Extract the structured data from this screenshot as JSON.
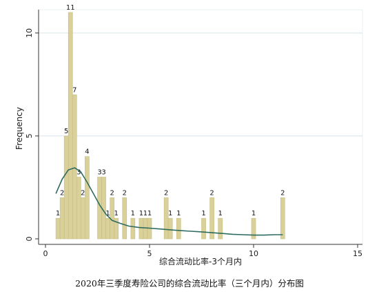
{
  "caption": "2020年三季度寿险公司的综合流动比率（三个月内）分布图",
  "chart_data": {
    "type": "bar",
    "xlabel": "综合流动比率-3个月内",
    "ylabel": "Frequency",
    "xlim": [
      0,
      15
    ],
    "ylim": [
      0,
      11
    ],
    "xticks": [
      0,
      5,
      10,
      15
    ],
    "yticks": [
      0,
      5,
      10
    ],
    "grid": "horizontal",
    "colors": {
      "bar": "#d9d09a",
      "bar_edge": "#c7bd80",
      "line": "#2e6b5e",
      "grid": "#d8e4ea",
      "frame_bg": "#eaf2f3"
    },
    "bars": [
      {
        "x_start": 0.5,
        "x_end": 0.7,
        "count": 1,
        "label": "1"
      },
      {
        "x_start": 0.7,
        "x_end": 0.9,
        "count": 2,
        "label": "2"
      },
      {
        "x_start": 0.9,
        "x_end": 1.1,
        "count": 5,
        "label": "5"
      },
      {
        "x_start": 1.1,
        "x_end": 1.3,
        "count": 11,
        "label": "11"
      },
      {
        "x_start": 1.3,
        "x_end": 1.5,
        "count": 7,
        "label": "7"
      },
      {
        "x_start": 1.5,
        "x_end": 1.7,
        "count": 3,
        "label": "3"
      },
      {
        "x_start": 1.7,
        "x_end": 1.9,
        "count": 2,
        "label": "2"
      },
      {
        "x_start": 1.9,
        "x_end": 2.1,
        "count": 4,
        "label": "4"
      },
      {
        "x_start": 2.1,
        "x_end": 2.5,
        "count": 0,
        "label": ""
      },
      {
        "x_start": 2.5,
        "x_end": 2.7,
        "count": 3,
        "label": "3"
      },
      {
        "x_start": 2.7,
        "x_end": 2.9,
        "count": 3,
        "label": "3"
      },
      {
        "x_start": 2.9,
        "x_end": 3.1,
        "count": 1,
        "label": "1"
      },
      {
        "x_start": 3.1,
        "x_end": 3.3,
        "count": 2,
        "label": "2"
      },
      {
        "x_start": 3.3,
        "x_end": 3.5,
        "count": 1,
        "label": "1"
      },
      {
        "x_start": 3.7,
        "x_end": 3.9,
        "count": 2,
        "label": "2"
      },
      {
        "x_start": 4.1,
        "x_end": 4.3,
        "count": 1,
        "label": "1"
      },
      {
        "x_start": 4.5,
        "x_end": 4.7,
        "count": 1,
        "label": "1"
      },
      {
        "x_start": 4.7,
        "x_end": 4.9,
        "count": 1,
        "label": "1"
      },
      {
        "x_start": 4.9,
        "x_end": 5.1,
        "count": 1,
        "label": "1"
      },
      {
        "x_start": 5.7,
        "x_end": 5.9,
        "count": 2,
        "label": "2"
      },
      {
        "x_start": 5.9,
        "x_end": 6.1,
        "count": 1,
        "label": "1"
      },
      {
        "x_start": 6.3,
        "x_end": 6.5,
        "count": 1,
        "label": "1"
      },
      {
        "x_start": 7.5,
        "x_end": 7.7,
        "count": 1,
        "label": "1"
      },
      {
        "x_start": 7.9,
        "x_end": 8.1,
        "count": 2,
        "label": "2"
      },
      {
        "x_start": 8.3,
        "x_end": 8.5,
        "count": 1,
        "label": "1"
      },
      {
        "x_start": 9.9,
        "x_end": 10.1,
        "count": 1,
        "label": "1"
      },
      {
        "x_start": 11.3,
        "x_end": 11.5,
        "count": 2,
        "label": "2"
      }
    ],
    "density_curve": {
      "x": [
        0.5,
        0.8,
        1.1,
        1.4,
        1.7,
        2.0,
        2.3,
        2.6,
        2.9,
        3.2,
        3.6,
        4.0,
        4.5,
        5.0,
        5.5,
        6.0,
        6.5,
        7.0,
        7.5,
        8.0,
        8.5,
        9.0,
        9.5,
        10.0,
        10.5,
        11.0,
        11.4
      ],
      "y": [
        2.2,
        2.9,
        3.35,
        3.45,
        3.25,
        2.75,
        2.2,
        1.65,
        1.2,
        0.9,
        0.75,
        0.62,
        0.55,
        0.52,
        0.48,
        0.44,
        0.4,
        0.37,
        0.34,
        0.3,
        0.26,
        0.22,
        0.2,
        0.18,
        0.18,
        0.2,
        0.2
      ]
    }
  }
}
